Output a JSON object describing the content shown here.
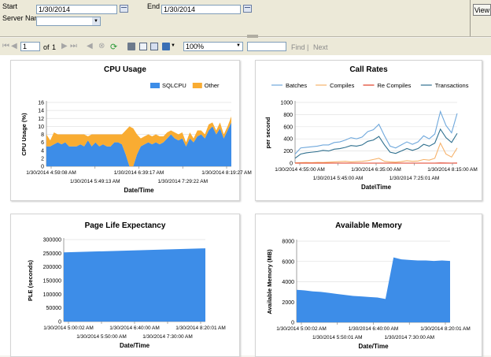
{
  "params": {
    "start_label": "Start",
    "start_value": "1/30/2014",
    "end_label": "End",
    "end_value": "1/30/2014",
    "server_label": "Server Name",
    "server_value": "",
    "view_button": "View"
  },
  "toolbar": {
    "page_value": "1",
    "of_label": "of",
    "page_count": "1",
    "zoom_value": "100%",
    "find_label": "Find",
    "separator": "|",
    "next_label": "Next"
  },
  "cpu": {
    "title": "CPU Usage",
    "legend": [
      "SQLCPU",
      "Other"
    ],
    "ylabel": "CPU Usage (%)",
    "xlabel": "Date/Time",
    "yticks": [
      "0",
      "2",
      "4",
      "6",
      "8",
      "10",
      "12",
      "14",
      "16"
    ],
    "xticks_row1": [
      "1/30/2014 4:59:08 AM",
      "1/30/2014 6:39:17 AM",
      "1/30/2014 8:19:27 AM"
    ],
    "xticks_row2": [
      "1/30/2014 5:49:13 AM",
      "1/30/2014 7:29:22 AM"
    ]
  },
  "calls": {
    "title": "Call Rates",
    "legend": [
      "Batches",
      "Compiles",
      "Re Compiles",
      "Transactions"
    ],
    "ylabel": "per second",
    "xlabel": "Date\\Time",
    "yticks": [
      "0",
      "200",
      "400",
      "600",
      "800",
      "1000"
    ],
    "xticks_row1": [
      "1/30/2014 4:55:00 AM",
      "1/30/2014 6:35:00 AM",
      "1/30/2014 8:15:00 AM"
    ],
    "xticks_row2": [
      "1/30/2014 5:45:00 AM",
      "1/30/2014 7:25:01 AM"
    ]
  },
  "ple": {
    "title": "Page Life Expectancy",
    "ylabel": "PLE (seconds)",
    "xlabel": "Date/Time",
    "yticks": [
      "0",
      "50000",
      "100000",
      "150000",
      "200000",
      "250000",
      "300000"
    ],
    "xticks_row1": [
      "1/30/2014 5:00:02 AM",
      "1/30/2014 6:40:00 AM",
      "1/30/2014 8:20:01 AM"
    ],
    "xticks_row2": [
      "1/30/2014 5:50:00 AM",
      "1/30/2014 7:30:00 AM"
    ]
  },
  "mem": {
    "title": "Available Memory",
    "ylabel": "Available Memory (MB)",
    "xlabel": "Date/Time",
    "yticks": [
      "0",
      "2000",
      "4000",
      "6000",
      "8000"
    ],
    "xticks_row1": [
      "1/30/2014 5:00:02 AM",
      "1/30/2014 6:40:00 AM",
      "1/30/2014 8:20:01 AM"
    ],
    "xticks_row2": [
      "1/30/2014 5:50:01 AM",
      "1/30/2014 7:30:00 AM"
    ]
  },
  "colors": {
    "sqlcpu": "#3d8de8",
    "other": "#f9ac32",
    "batches": "#6fa8dc",
    "compiles": "#f6b26b",
    "recompiles": "#e03b24",
    "transactions": "#2e6f8e",
    "area": "#3d8de8"
  },
  "chart_data": [
    {
      "type": "area",
      "title": "CPU Usage",
      "ylabel": "CPU Usage (%)",
      "xlabel": "Date/Time",
      "ylim": [
        0,
        16
      ],
      "legend_position": "top-right",
      "x": [
        0,
        1,
        2,
        3,
        4,
        5,
        6,
        7,
        8,
        9,
        10,
        11,
        12,
        13,
        14,
        15,
        16,
        17,
        18,
        19,
        20,
        21,
        22,
        23,
        24,
        25,
        26,
        27,
        28,
        29,
        30,
        31,
        32,
        33,
        34,
        35,
        36,
        37,
        38,
        39,
        40,
        41,
        42,
        43,
        44,
        45,
        46,
        47,
        48,
        49
      ],
      "series": [
        {
          "name": "SQLCPU",
          "values": [
            5,
            5,
            5.5,
            6,
            5.5,
            6,
            5,
            5,
            5,
            5.5,
            5,
            6.5,
            5,
            6,
            5,
            5.5,
            5,
            5,
            6,
            6,
            5.5,
            3,
            0,
            0,
            3,
            5,
            5.5,
            6,
            5.5,
            6,
            5.5,
            6,
            7,
            8,
            7,
            6.5,
            7,
            5,
            7,
            6,
            7.5,
            8,
            7,
            9,
            10,
            8,
            9.5,
            7,
            9,
            11
          ]
        },
        {
          "name": "Other",
          "values": [
            3,
            1.5,
            3,
            2,
            2.5,
            2,
            3,
            3,
            3,
            2.5,
            3,
            1,
            3,
            2,
            3,
            2.5,
            3,
            3,
            2,
            2,
            2.5,
            6,
            10,
            9.5,
            5,
            2,
            2,
            2,
            2,
            2,
            2,
            1.5,
            1.5,
            1,
            1.5,
            1.5,
            1.5,
            1,
            1.5,
            1,
            1.5,
            1,
            1,
            1.5,
            1,
            1,
            1.5,
            1,
            1,
            1.5
          ]
        }
      ]
    },
    {
      "type": "line",
      "title": "Call Rates",
      "ylabel": "per second",
      "xlabel": "Date\\Time",
      "ylim": [
        0,
        1000
      ],
      "legend_position": "top",
      "x": [
        0,
        1,
        2,
        3,
        4,
        5,
        6,
        7,
        8,
        9,
        10,
        11,
        12,
        13,
        14,
        15,
        16,
        17,
        18,
        19,
        20,
        21,
        22,
        23,
        24,
        25,
        26,
        27,
        28,
        29
      ],
      "series": [
        {
          "name": "Batches",
          "values": [
            150,
            250,
            260,
            270,
            280,
            300,
            300,
            340,
            350,
            380,
            420,
            400,
            430,
            520,
            550,
            640,
            450,
            280,
            250,
            300,
            350,
            310,
            350,
            450,
            400,
            480,
            850,
            620,
            500,
            820
          ]
        },
        {
          "name": "Compiles",
          "values": [
            5,
            8,
            10,
            8,
            12,
            10,
            15,
            20,
            25,
            30,
            20,
            25,
            30,
            40,
            60,
            80,
            30,
            20,
            15,
            25,
            40,
            30,
            35,
            60,
            50,
            80,
            330,
            150,
            100,
            250
          ]
        },
        {
          "name": "Re Compiles",
          "values": [
            0,
            0,
            0,
            0,
            0,
            0,
            0,
            0,
            0,
            0,
            0,
            0,
            0,
            0,
            0,
            0,
            0,
            0,
            0,
            0,
            0,
            0,
            0,
            0,
            0,
            0,
            2,
            1,
            0,
            1
          ]
        },
        {
          "name": "Transactions",
          "values": [
            80,
            150,
            170,
            180,
            190,
            210,
            200,
            230,
            240,
            260,
            290,
            280,
            300,
            360,
            380,
            440,
            300,
            180,
            160,
            200,
            240,
            210,
            240,
            310,
            280,
            330,
            560,
            420,
            340,
            490
          ]
        }
      ]
    },
    {
      "type": "area",
      "title": "Page Life Expectancy",
      "ylabel": "PLE (seconds)",
      "xlabel": "Date/Time",
      "ylim": [
        0,
        300000
      ],
      "x": [
        0,
        1
      ],
      "series": [
        {
          "values": [
            253000,
            268000
          ]
        }
      ]
    },
    {
      "type": "area",
      "title": "Available Memory",
      "ylabel": "Available Memory (MB)",
      "xlabel": "Date/Time",
      "ylim": [
        0,
        8000
      ],
      "x": [
        0,
        1,
        2,
        3,
        4,
        5,
        6,
        7,
        8,
        9,
        10,
        11,
        12,
        13,
        14,
        15,
        16,
        17,
        18,
        19
      ],
      "series": [
        {
          "values": [
            3200,
            3150,
            3050,
            3000,
            2900,
            2800,
            2700,
            2600,
            2550,
            2500,
            2450,
            2300,
            6400,
            6200,
            6150,
            6100,
            6100,
            6050,
            6100,
            6050
          ]
        }
      ]
    }
  ]
}
